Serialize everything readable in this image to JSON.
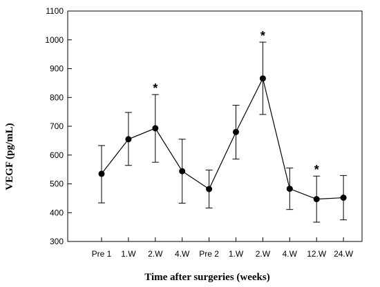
{
  "chart_data": {
    "type": "line",
    "xlabel": "Time after surgeries (weeks)",
    "ylabel": "VEGF (pg/mL)",
    "ylim": [
      300,
      1100
    ],
    "yticks": [
      300,
      400,
      500,
      600,
      700,
      800,
      900,
      1000,
      1100
    ],
    "categories": [
      "Pre 1",
      "1.W",
      "2.W",
      "4.W",
      "Pre 2",
      "1.W",
      "2.W",
      "4.W",
      "12.W",
      "24.W"
    ],
    "series": [
      {
        "values": [
          535,
          655,
          693,
          544,
          482,
          680,
          866,
          483,
          447,
          452
        ],
        "error_upper": [
          633,
          748,
          810,
          655,
          548,
          773,
          992,
          555,
          527,
          529
        ],
        "error_lower": [
          434,
          564,
          575,
          433,
          416,
          586,
          741,
          411,
          367,
          375
        ],
        "color": "#000000",
        "marker": "filled-circle"
      }
    ],
    "annotations": [
      {
        "index": 2,
        "text": "*"
      },
      {
        "index": 6,
        "text": "*"
      },
      {
        "index": 8,
        "text": "*"
      }
    ],
    "grid": false,
    "legend": "none"
  }
}
